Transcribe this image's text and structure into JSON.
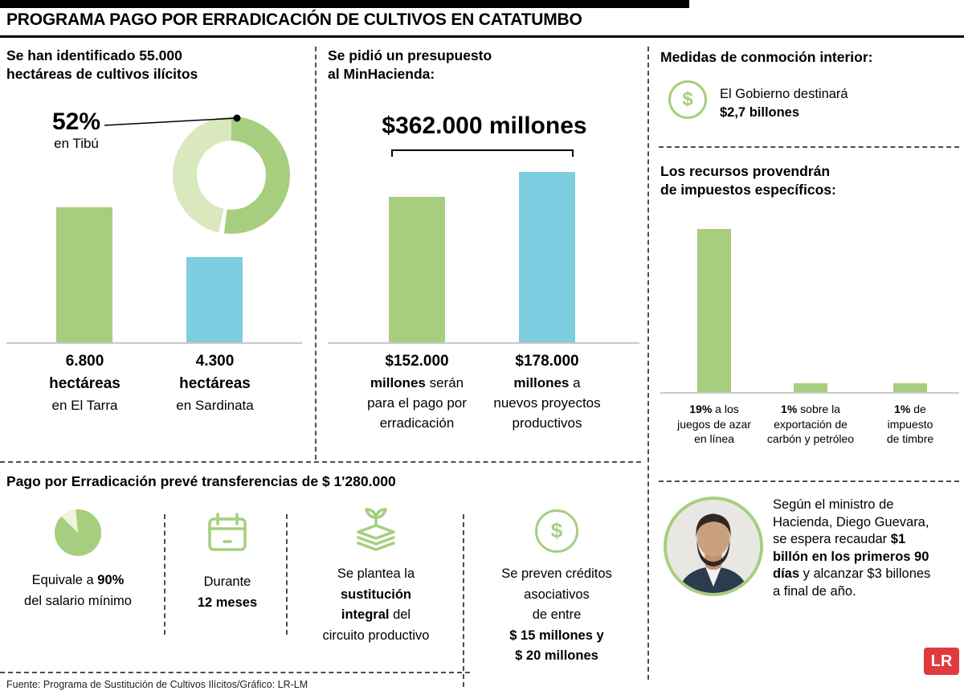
{
  "meta": {
    "title": "PROGRAMA PAGO POR ERRADICACIÓN DE CULTIVOS EN CATATUMBO",
    "source": "Fuente: Programa de Sustitución de Cultivos Ilícitos/Gráfico: LR-LM",
    "logo": "LR"
  },
  "colors": {
    "green": "#a6ce7e",
    "light_green": "#d9e8bd",
    "blue": "#7ecde0",
    "red": "#e03a3c"
  },
  "chart_data": [
    {
      "type": "pie",
      "title": "Se han identificado 55.000 hectáreas de cultivos ilícitos",
      "labels": [
        "en Tibú",
        ""
      ],
      "values": [
        52,
        48
      ],
      "colors": [
        "#a6ce7e",
        "#d9e8bd"
      ],
      "annotation": "52% en Tibú"
    },
    {
      "type": "bar",
      "title": "Hectáreas de cultivos ilícitos",
      "categories": [
        "en El Tarra",
        "en Sardinata"
      ],
      "values": [
        6800,
        4300
      ],
      "unit": "hectáreas",
      "colors": [
        "#a6ce7e",
        "#7ecde0"
      ]
    },
    {
      "type": "bar",
      "title": "Se pidió un presupuesto al MinHacienda: $362.000 millones",
      "categories": [
        "para el pago por erradicación",
        "a nuevos proyectos productivos"
      ],
      "values": [
        152000,
        178000
      ],
      "unit": "millones",
      "colors": [
        "#a6ce7e",
        "#7ecde0"
      ]
    },
    {
      "type": "bar",
      "title": "Los recursos provendrán de impuestos específicos",
      "categories": [
        "a los juegos de azar en línea",
        "sobre la exportación de carbón y petróleo",
        "de impuesto de timbre"
      ],
      "values": [
        19,
        1,
        1
      ],
      "unit": "%",
      "colors": [
        "#a6ce7e",
        "#a6ce7e",
        "#a6ce7e"
      ]
    }
  ],
  "col1": {
    "heading1": "Se han identificado 55.000",
    "heading2": "hectáreas de cultivos ilícitos",
    "donut_pct": "52%",
    "donut_sub": "en Tibú",
    "bar1_value": "6.800",
    "bar1_unit": "hectáreas",
    "bar1_place": "en El Tarra",
    "bar2_value": "4.300",
    "bar2_unit": "hectáreas",
    "bar2_place": "en Sardinata"
  },
  "col2": {
    "heading1": "Se pidió un presupuesto",
    "heading2": "al MinHacienda:",
    "total": "$362.000 millones",
    "bar1_amount": "$152.000",
    "bar1_l2_bold": "millones",
    "bar1_l2_rest": " serán",
    "bar1_l3": "para el pago por",
    "bar1_l4": "erradicación",
    "bar2_amount": "$178.000",
    "bar2_l2_bold": "millones",
    "bar2_l2_rest": " a",
    "bar2_l3": "nuevos proyectos",
    "bar2_l4": "productivos"
  },
  "col3": {
    "heading": "Medidas de conmoción interior:",
    "gov_line1": "El Gobierno destinará",
    "gov_line2": "$2,7 billones",
    "taxes_heading1": "Los recursos provendrán",
    "taxes_heading2": "de impuestos específicos:",
    "tax1_bold": "19%",
    "tax1_rest": " a los",
    "tax1_l2": "juegos de azar",
    "tax1_l3": "en línea",
    "tax2_bold": "1%",
    "tax2_rest": " sobre la",
    "tax2_l2": "exportación de",
    "tax2_l3": "carbón y petróleo",
    "tax3_bold": "1%",
    "tax3_rest": " de",
    "tax3_l2": "impuesto",
    "tax3_l3": "de timbre",
    "minister_pre": "Según el ministro de Hacienda, Diego Guevara, se espera recaudar ",
    "minister_bold": "$1 billón en los primeros 90 días",
    "minister_post": " y alcanzar $3 billones a final de año."
  },
  "transfer": {
    "heading": "Pago por Erradicación prevé transferencias de $ 1'280.000",
    "item1_pre": "Equivale a ",
    "item1_bold": "90%",
    "item1_l2": "del salario mínimo",
    "item2_l1": "Durante",
    "item2_l2": "12 meses",
    "item3_l1": "Se plantea la",
    "item3_l2_bold": "sustitución",
    "item3_l3_bold": "integral",
    "item3_l3_rest": " del",
    "item3_l4": "circuito productivo",
    "item4_l1": "Se preven créditos",
    "item4_l2": "asociativos",
    "item4_l3": "de entre",
    "item4_l4": "$ 15 millones y",
    "item4_l5": "$ 20 millones"
  }
}
